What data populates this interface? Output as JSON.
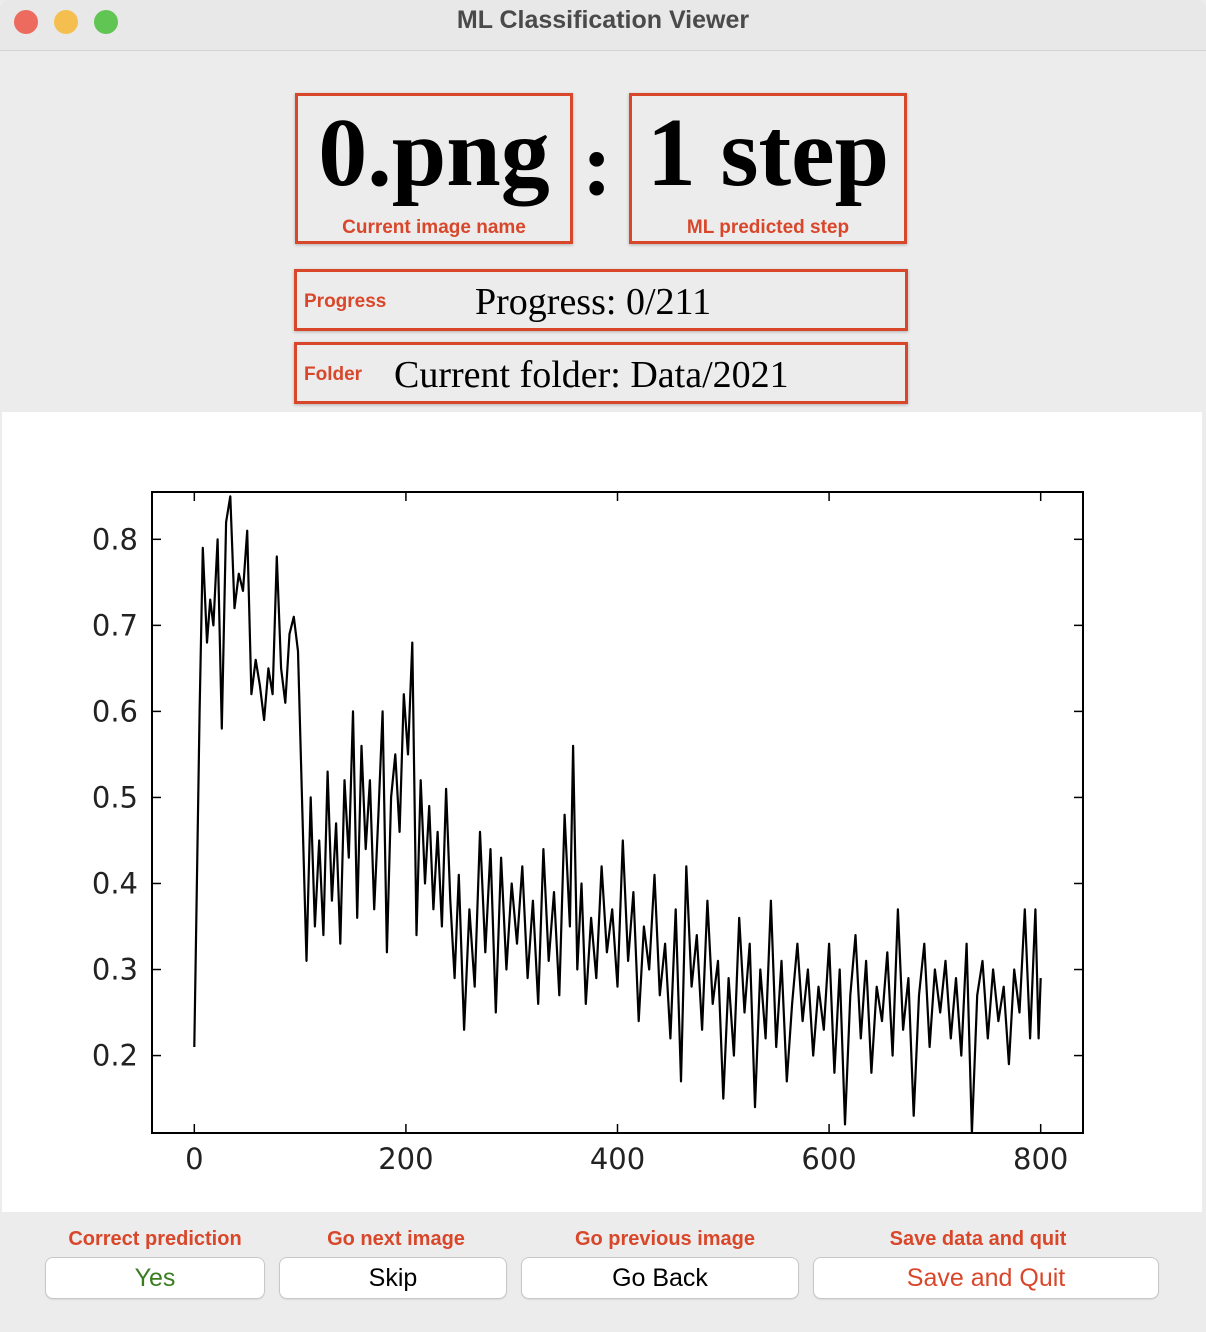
{
  "window": {
    "title": "ML Classification Viewer"
  },
  "header": {
    "image_name": "0.png",
    "separator": ":",
    "step": "1 step",
    "image_name_note": "Current image name",
    "step_note": "ML predicted step"
  },
  "progress": {
    "note": "Progress",
    "text": "Progress: 0/211"
  },
  "folder": {
    "note": "Folder",
    "text": "Current folder: Data/2021"
  },
  "chart_data": {
    "type": "line",
    "color": "#000000",
    "x": [
      0,
      5,
      8,
      12,
      15,
      18,
      22,
      26,
      30,
      34,
      38,
      42,
      46,
      50,
      54,
      58,
      62,
      66,
      70,
      74,
      78,
      82,
      86,
      90,
      94,
      98,
      102,
      106,
      110,
      114,
      118,
      122,
      126,
      130,
      134,
      138,
      142,
      146,
      150,
      154,
      158,
      162,
      166,
      170,
      174,
      178,
      182,
      186,
      190,
      194,
      198,
      202,
      206,
      210,
      214,
      218,
      222,
      226,
      230,
      234,
      238,
      242,
      246,
      250,
      255,
      260,
      265,
      270,
      275,
      280,
      285,
      290,
      295,
      300,
      305,
      310,
      315,
      320,
      325,
      330,
      335,
      340,
      345,
      350,
      355,
      358,
      362,
      366,
      370,
      375,
      380,
      385,
      390,
      395,
      400,
      405,
      410,
      415,
      420,
      425,
      430,
      435,
      440,
      445,
      450,
      455,
      460,
      465,
      470,
      475,
      480,
      485,
      490,
      495,
      500,
      505,
      510,
      515,
      520,
      525,
      530,
      535,
      540,
      545,
      550,
      555,
      560,
      565,
      570,
      575,
      580,
      585,
      590,
      595,
      600,
      605,
      610,
      615,
      620,
      625,
      630,
      635,
      640,
      645,
      650,
      655,
      660,
      665,
      670,
      675,
      680,
      685,
      690,
      695,
      700,
      705,
      710,
      715,
      720,
      725,
      730,
      735,
      740,
      745,
      750,
      755,
      760,
      765,
      770,
      775,
      780,
      785,
      790,
      795,
      798,
      800
    ],
    "values": [
      0.21,
      0.6,
      0.79,
      0.68,
      0.73,
      0.7,
      0.8,
      0.58,
      0.82,
      0.85,
      0.72,
      0.76,
      0.74,
      0.81,
      0.62,
      0.66,
      0.63,
      0.59,
      0.65,
      0.62,
      0.78,
      0.65,
      0.61,
      0.69,
      0.71,
      0.67,
      0.49,
      0.31,
      0.5,
      0.35,
      0.45,
      0.34,
      0.53,
      0.38,
      0.47,
      0.33,
      0.52,
      0.43,
      0.6,
      0.36,
      0.56,
      0.44,
      0.52,
      0.37,
      0.48,
      0.6,
      0.32,
      0.5,
      0.55,
      0.46,
      0.62,
      0.55,
      0.68,
      0.34,
      0.52,
      0.4,
      0.49,
      0.37,
      0.46,
      0.35,
      0.51,
      0.38,
      0.29,
      0.41,
      0.23,
      0.37,
      0.28,
      0.46,
      0.32,
      0.44,
      0.25,
      0.43,
      0.3,
      0.4,
      0.33,
      0.42,
      0.29,
      0.38,
      0.26,
      0.44,
      0.31,
      0.39,
      0.27,
      0.48,
      0.35,
      0.56,
      0.3,
      0.4,
      0.26,
      0.36,
      0.29,
      0.42,
      0.32,
      0.37,
      0.28,
      0.45,
      0.31,
      0.39,
      0.24,
      0.35,
      0.3,
      0.41,
      0.27,
      0.33,
      0.22,
      0.37,
      0.17,
      0.42,
      0.28,
      0.34,
      0.23,
      0.38,
      0.26,
      0.31,
      0.15,
      0.29,
      0.2,
      0.36,
      0.25,
      0.33,
      0.14,
      0.3,
      0.22,
      0.38,
      0.21,
      0.31,
      0.17,
      0.26,
      0.33,
      0.24,
      0.3,
      0.2,
      0.28,
      0.23,
      0.33,
      0.18,
      0.3,
      0.12,
      0.27,
      0.34,
      0.22,
      0.31,
      0.18,
      0.28,
      0.24,
      0.32,
      0.2,
      0.37,
      0.23,
      0.29,
      0.13,
      0.27,
      0.33,
      0.21,
      0.3,
      0.25,
      0.31,
      0.22,
      0.29,
      0.2,
      0.33,
      0.11,
      0.27,
      0.31,
      0.22,
      0.3,
      0.24,
      0.28,
      0.19,
      0.3,
      0.25,
      0.37,
      0.22,
      0.37,
      0.22,
      0.29
    ],
    "xlim": [
      -40,
      840
    ],
    "xticks": [
      0,
      200,
      400,
      600,
      800
    ],
    "ylim": [
      0.11,
      0.855
    ],
    "yticks": [
      0.2,
      0.3,
      0.4,
      0.5,
      0.6,
      0.7,
      0.8
    ]
  },
  "buttons": [
    {
      "caption": "Correct prediction",
      "label": "Yes"
    },
    {
      "caption": "Go next image",
      "label": "Skip"
    },
    {
      "caption": "Go previous image",
      "label": "Go Back"
    },
    {
      "caption": "Save data and quit",
      "label": "Save and Quit"
    }
  ]
}
